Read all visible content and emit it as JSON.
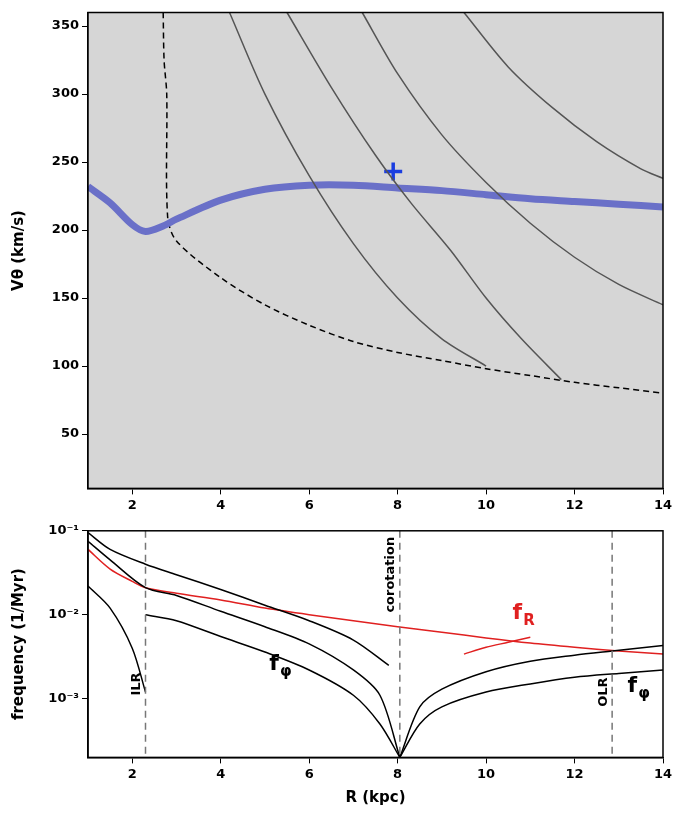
{
  "chart_data": [
    {
      "type": "line",
      "ylabel": "Vθ (km/s)",
      "xlim": [
        1,
        14
      ],
      "xticks": [
        2,
        4,
        6,
        8,
        10,
        12,
        14
      ],
      "ylim": [
        10,
        360
      ],
      "yticks": [
        50,
        100,
        150,
        200,
        250,
        300,
        350
      ],
      "grid": false,
      "series": [
        {
          "color": "#555555",
          "line_style": "solid",
          "x": [
            5.5,
            6.5,
            7.5,
            8.3,
            9.2,
            10,
            10.8,
            11.7
          ],
          "values": [
            360,
            305,
            255,
            220,
            185,
            150,
            120,
            90
          ]
        },
        {
          "color": "#555555",
          "line_style": "solid",
          "x": [
            7.2,
            8,
            9,
            10,
            11,
            12,
            13,
            14
          ],
          "values": [
            360,
            315,
            270,
            235,
            205,
            180,
            160,
            145
          ]
        },
        {
          "color": "#555555",
          "line_style": "solid",
          "x": [
            4.2,
            5,
            6,
            7,
            8,
            9,
            10
          ],
          "values": [
            360,
            300,
            240,
            190,
            150,
            120,
            100
          ]
        },
        {
          "color": "#555555",
          "line_style": "solid",
          "x": [
            9.5,
            10.5,
            11.5,
            12.5,
            13.5,
            14
          ],
          "values": [
            360,
            320,
            290,
            265,
            245,
            238
          ]
        },
        {
          "color": "#6a70c8",
          "line_style": "thick",
          "x": [
            1,
            1.5,
            2,
            2.3,
            2.7,
            3,
            4,
            5,
            6,
            7,
            8,
            9,
            10,
            11,
            12,
            13,
            14
          ],
          "values": [
            232,
            220,
            204,
            199,
            203,
            208,
            222,
            230,
            233,
            233,
            231,
            229,
            226,
            223,
            221,
            219,
            217
          ]
        },
        {
          "color": "#000000",
          "line_style": "dashed",
          "x": [
            2.7,
            2.72,
            2.78,
            2.8,
            3,
            4,
            5,
            6,
            7,
            8,
            9,
            10,
            11,
            12,
            13,
            14
          ],
          "values": [
            360,
            325,
            300,
            210,
            192,
            165,
            145,
            130,
            118,
            110,
            104,
            98,
            93,
            88,
            84,
            80
          ]
        },
        {
          "color": "#1a3de0",
          "marker": "cross",
          "x": [
            7.9
          ],
          "values": [
            243
          ]
        }
      ]
    },
    {
      "type": "line",
      "xlabel": "R (kpc)",
      "ylabel": "frequency (1/Myr)",
      "log": "y",
      "xlim": [
        1,
        14
      ],
      "xticks": [
        2,
        4,
        6,
        8,
        10,
        12,
        14
      ],
      "ylim": [
        0.0002,
        0.1
      ],
      "yticks": [
        {
          "value": 0.001,
          "label": "10⁻³"
        },
        {
          "value": 0.01,
          "label": "10⁻²"
        },
        {
          "value": 0.1,
          "label": "10⁻¹"
        }
      ],
      "grid": false,
      "series": [
        {
          "color": "#000000",
          "line_style": "solid",
          "x": [
            1,
            1.5,
            2.3,
            3,
            4,
            5,
            6,
            7,
            7.8
          ],
          "values": [
            0.095,
            0.06,
            0.04,
            0.03,
            0.02,
            0.013,
            0.0085,
            0.005,
            0.0025
          ]
        },
        {
          "color": "#000000",
          "line_style": "solid",
          "x": [
            1,
            1.5,
            2.3,
            3,
            4,
            5,
            6,
            7,
            7.6,
            8.05
          ],
          "values": [
            0.075,
            0.045,
            0.021,
            0.017,
            0.011,
            0.0072,
            0.0045,
            0.0022,
            0.0011,
            0.0002
          ]
        },
        {
          "color": "#000000",
          "line_style": "solid",
          "x": [
            2.3,
            3,
            4,
            5,
            6,
            7,
            7.6,
            8.05
          ],
          "values": [
            0.01,
            0.0085,
            0.0055,
            0.0036,
            0.0022,
            0.0011,
            0.0005,
            0.0002
          ]
        },
        {
          "color": "#000000",
          "line_style": "solid",
          "x": [
            1,
            1.5,
            2,
            2.3
          ],
          "values": [
            0.022,
            0.012,
            0.004,
            0.0012
          ]
        },
        {
          "color": "#000000",
          "line_style": "solid",
          "x": [
            8.05,
            8.5,
            9,
            10,
            11,
            12,
            12.85,
            14
          ],
          "values": [
            0.0002,
            0.0008,
            0.0013,
            0.0021,
            0.0028,
            0.0033,
            0.0037,
            0.0043
          ]
        },
        {
          "color": "#000000",
          "line_style": "solid",
          "x": [
            8.05,
            8.5,
            9,
            10,
            11,
            12,
            13,
            14
          ],
          "values": [
            0.0002,
            0.0005,
            0.0008,
            0.0012,
            0.0015,
            0.0018,
            0.002,
            0.0022
          ]
        },
        {
          "color": "#e02020",
          "line_style": "solid",
          "x": [
            1,
            1.5,
            2,
            2.3,
            3,
            4,
            5,
            6,
            7,
            8,
            9,
            10,
            11,
            12,
            13,
            14
          ],
          "values": [
            0.06,
            0.035,
            0.025,
            0.021,
            0.018,
            0.015,
            0.012,
            0.01,
            0.0085,
            0.0072,
            0.0062,
            0.0053,
            0.0046,
            0.0041,
            0.0037,
            0.0034
          ]
        },
        {
          "color": "#e02020",
          "line_style": "solid",
          "x": [
            9.5,
            10,
            10.5,
            11
          ],
          "values": [
            0.0034,
            0.0041,
            0.0047,
            0.0054
          ]
        }
      ],
      "annotations": [
        {
          "text": "ILR",
          "x": 2.3,
          "y": 0.0015,
          "color": "#000000",
          "line_style": "dashed"
        },
        {
          "text": "corotation",
          "x": 8.05,
          "y": 0.03,
          "color": "#000000",
          "line_style": "dashed"
        },
        {
          "text": "OLR",
          "x": 12.85,
          "y": 0.0012,
          "color": "#000000",
          "line_style": "dashed"
        },
        {
          "text": "f",
          "subscript": "R",
          "x": 10.6,
          "y": 0.009,
          "color": "#e02020"
        },
        {
          "text": "f",
          "subscript": "φ",
          "x": 5.1,
          "y": 0.0022,
          "color": "#000000"
        },
        {
          "text": "f",
          "subscript": "φ",
          "x": 13.2,
          "y": 0.0012,
          "color": "#000000"
        }
      ]
    }
  ]
}
